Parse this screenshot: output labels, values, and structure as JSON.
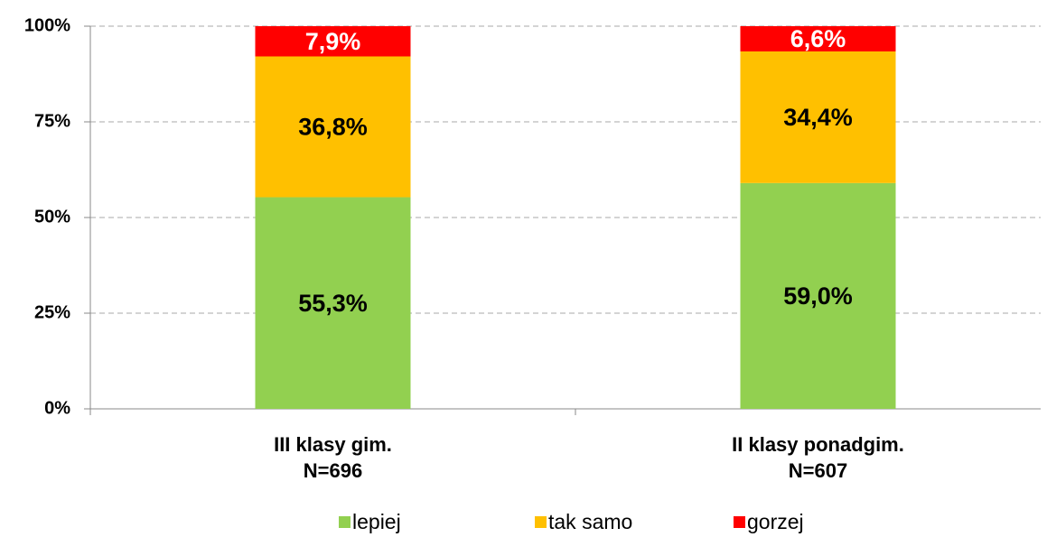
{
  "chart_data": {
    "type": "stacked_bar",
    "categories": [
      [
        "III klasy gim.",
        "N=696"
      ],
      [
        "II klasy ponadgim.",
        "N=607"
      ]
    ],
    "series": [
      {
        "name": "lepiej",
        "color": "#92d050",
        "values": [
          55.3,
          59.0
        ],
        "value_labels": [
          "55,3%",
          "59,0%"
        ],
        "label_color": "#000000"
      },
      {
        "name": "tak samo",
        "color": "#ffc000",
        "values": [
          36.8,
          34.4
        ],
        "value_labels": [
          "36,8%",
          "34,4%"
        ],
        "label_color": "#000000"
      },
      {
        "name": "gorzej",
        "color": "#ff0000",
        "values": [
          7.9,
          6.6
        ],
        "value_labels": [
          "7,9%",
          "6,6%"
        ],
        "label_color": "#ffffff"
      }
    ],
    "ylim": [
      0,
      100
    ],
    "yticks": [
      {
        "value": 0,
        "label": "0%"
      },
      {
        "value": 25,
        "label": "25%"
      },
      {
        "value": 50,
        "label": "50%"
      },
      {
        "value": 75,
        "label": "75%"
      },
      {
        "value": 100,
        "label": "100%"
      }
    ],
    "grid": true,
    "legend": "bottom"
  }
}
